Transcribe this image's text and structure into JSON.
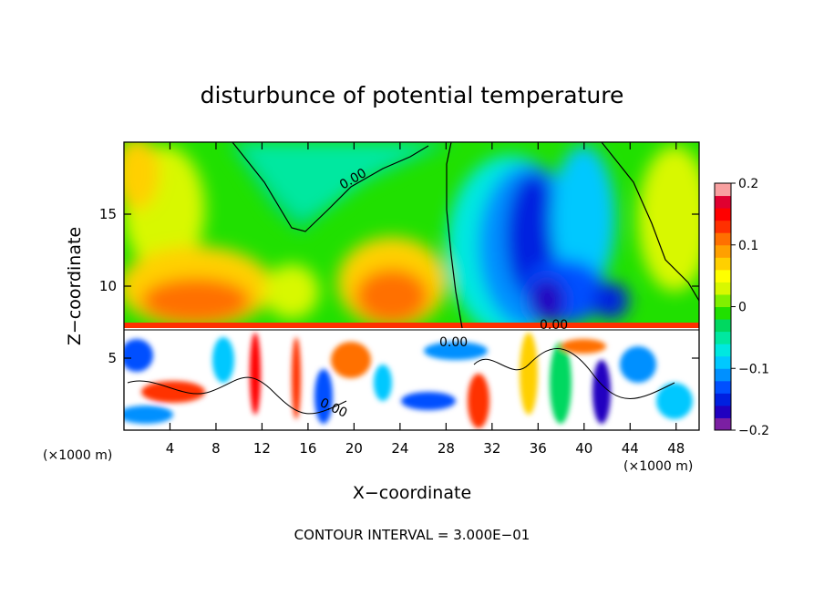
{
  "chart_data": {
    "type": "heatmap",
    "title": "disturbunce of potential temperature",
    "xlabel": "X−coordinate",
    "ylabel": "Z−coordinate",
    "x_unit": "(×1000 m)",
    "z_unit": "(×1000 m)",
    "footer": "CONTOUR INTERVAL = 3.000E−01",
    "xlim": [
      0,
      50
    ],
    "ylim": [
      0,
      20
    ],
    "x_ticks": [
      "4",
      "8",
      "12",
      "16",
      "20",
      "24",
      "28",
      "32",
      "36",
      "40",
      "44",
      "48"
    ],
    "y_ticks": [
      "5",
      "10",
      "15"
    ],
    "contour_labels": [
      "0.00",
      "0.00",
      "0.00",
      "0.00"
    ],
    "colorbar": {
      "range": [
        -0.2,
        0.2
      ],
      "tick_labels": [
        "0.2",
        "0.1",
        "0",
        "−0.1",
        "−0.2"
      ],
      "colors": [
        "#7b1fa2",
        "#2000c0",
        "#0020e0",
        "#0050ff",
        "#0090ff",
        "#00c8ff",
        "#00e8e0",
        "#00e8a0",
        "#00d860",
        "#20e000",
        "#80f000",
        "#d8f800",
        "#ffff00",
        "#ffd000",
        "#ffa000",
        "#ff7000",
        "#ff3000",
        "#ff0000",
        "#e00030",
        "#f8a0a0"
      ]
    }
  }
}
